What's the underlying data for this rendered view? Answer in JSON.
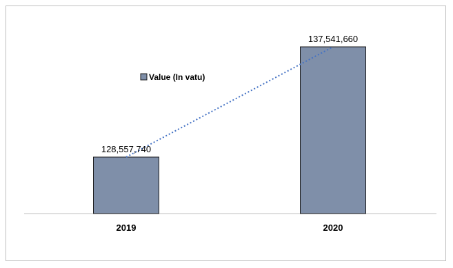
{
  "chart_data": {
    "type": "bar",
    "categories": [
      "2019",
      "2020"
    ],
    "series": [
      {
        "name": "Value (In vatu)",
        "values": [
          128557740,
          137541660
        ],
        "data_labels": [
          "128,557,740",
          "137,541,660"
        ]
      }
    ],
    "trendline": {
      "type": "linear",
      "style": "dotted"
    },
    "legend": {
      "position": "inside-upper-left"
    },
    "grid": false,
    "colors": {
      "bar_fill": "#7f8fa9",
      "bar_stroke": "#1a1a1a",
      "trendline": "#4472c4",
      "axis": "#bfbfbf"
    }
  }
}
